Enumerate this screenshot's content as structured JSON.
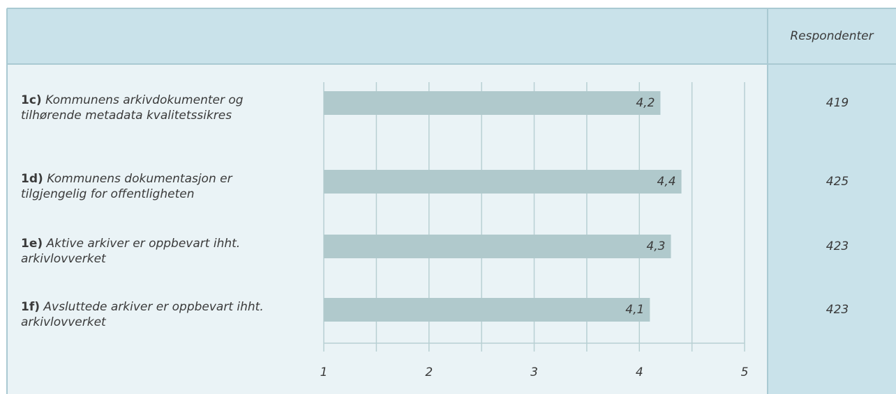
{
  "chart_data": {
    "type": "bar",
    "orientation": "horizontal",
    "codes": [
      "1c)",
      "1d)",
      "1e)",
      "1f)"
    ],
    "categories": [
      "Kommunens arkivdokumenter og tilhørende metadata kvalitetssikres",
      "Kommunens dokumentasjon er tilgjengelig for offentligheten",
      "Aktive arkiver er oppbevart ihht. arkivlovverket",
      "Avsluttede arkiver er oppbevart ihht. arkivlovverket"
    ],
    "values": [
      4.2,
      4.4,
      4.3,
      4.1
    ],
    "value_labels": [
      "4,2",
      "4,4",
      "4,3",
      "4,1"
    ],
    "color": "#b0c9cc",
    "xlim": [
      1,
      5
    ],
    "xticks": [
      1,
      2,
      3,
      4,
      5
    ],
    "minor_xticks": [
      1.5,
      2.5,
      3.5,
      4.5
    ],
    "grid": true,
    "respondents_header": "Respondenter",
    "respondents": [
      419,
      425,
      423,
      423
    ]
  }
}
